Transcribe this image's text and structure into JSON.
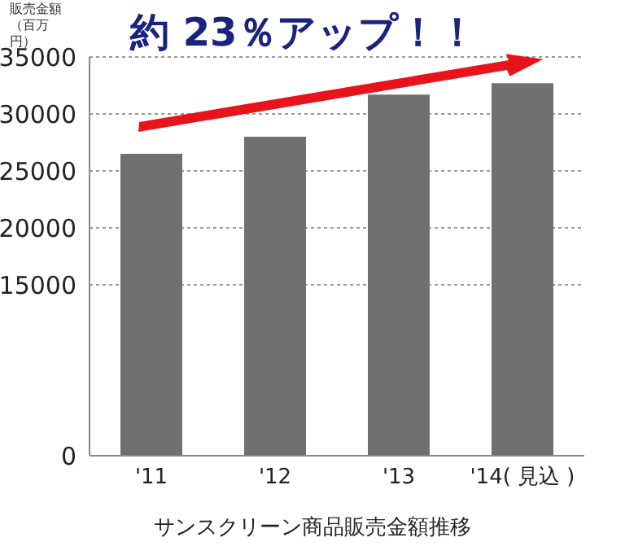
{
  "chart_data": {
    "type": "bar",
    "title": "サンスクリーン商品販売金額推移",
    "ylabel": "販売金額（百万円）",
    "annotations": [
      "約 23％アップ！！"
    ],
    "categories": [
      "'11",
      "'12",
      "'13",
      "'14( 見込 )"
    ],
    "values": [
      26500,
      28000,
      31700,
      32700
    ],
    "color": "#707070",
    "ylim": [
      0,
      35000
    ],
    "yticks": [
      0,
      15000,
      20000,
      25000,
      30000,
      35000
    ],
    "grid": "y",
    "legend": false
  }
}
